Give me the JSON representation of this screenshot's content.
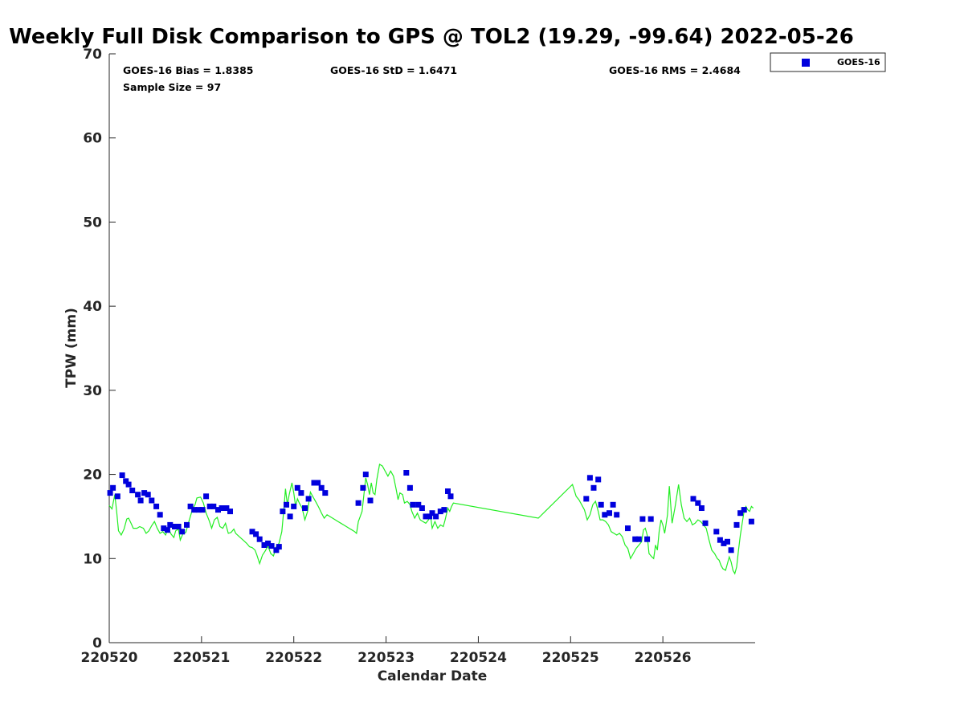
{
  "chart_data": {
    "type": "scatter",
    "title": "Weekly Full Disk Comparison to GPS @ TOL2 (19.29, -99.64) 2022-05-26",
    "xlabel": "Calendar Date",
    "ylabel": "TPW (mm)",
    "xlim": [
      0,
      7.0
    ],
    "ylim": [
      0,
      70
    ],
    "x_ticks": [
      {
        "value": 0,
        "label": "220520"
      },
      {
        "value": 1,
        "label": "220521"
      },
      {
        "value": 2,
        "label": "220522"
      },
      {
        "value": 3,
        "label": "220523"
      },
      {
        "value": 4,
        "label": "220524"
      },
      {
        "value": 5,
        "label": "220525"
      },
      {
        "value": 6,
        "label": "220526"
      }
    ],
    "y_ticks": [
      0,
      10,
      20,
      30,
      40,
      50,
      60,
      70
    ],
    "grid": false,
    "legend_position": "top-right",
    "stats": {
      "bias": "GOES-16 Bias = 1.8385",
      "std": "GOES-16 StD = 1.6471",
      "rms": "GOES-16 RMS = 2.4684",
      "sample": "Sample Size = 97"
    },
    "series": [
      {
        "name": "GOES-16",
        "kind": "scatter",
        "color": "#0000dd",
        "points": [
          [
            0.01,
            17.8
          ],
          [
            0.04,
            18.4
          ],
          [
            0.09,
            17.4
          ],
          [
            0.14,
            19.9
          ],
          [
            0.18,
            19.2
          ],
          [
            0.21,
            18.8
          ],
          [
            0.25,
            18.1
          ],
          [
            0.31,
            17.6
          ],
          [
            0.34,
            16.9
          ],
          [
            0.38,
            17.8
          ],
          [
            0.42,
            17.6
          ],
          [
            0.46,
            16.9
          ],
          [
            0.51,
            16.2
          ],
          [
            0.55,
            15.2
          ],
          [
            0.59,
            13.6
          ],
          [
            0.63,
            13.4
          ],
          [
            0.66,
            14.0
          ],
          [
            0.71,
            13.8
          ],
          [
            0.75,
            13.8
          ],
          [
            0.79,
            13.2
          ],
          [
            0.84,
            14.0
          ],
          [
            0.88,
            16.2
          ],
          [
            0.92,
            15.8
          ],
          [
            0.97,
            15.8
          ],
          [
            1.01,
            15.8
          ],
          [
            1.05,
            17.4
          ],
          [
            1.09,
            16.2
          ],
          [
            1.13,
            16.2
          ],
          [
            1.18,
            15.8
          ],
          [
            1.22,
            16.0
          ],
          [
            1.27,
            16.0
          ],
          [
            1.31,
            15.6
          ],
          [
            1.55,
            13.2
          ],
          [
            1.59,
            12.9
          ],
          [
            1.63,
            12.3
          ],
          [
            1.68,
            11.6
          ],
          [
            1.72,
            11.8
          ],
          [
            1.76,
            11.5
          ],
          [
            1.81,
            11.0
          ],
          [
            1.84,
            11.4
          ],
          [
            1.88,
            15.6
          ],
          [
            1.92,
            16.4
          ],
          [
            1.96,
            15.0
          ],
          [
            2.0,
            16.2
          ],
          [
            2.04,
            18.4
          ],
          [
            2.08,
            17.8
          ],
          [
            2.12,
            16.0
          ],
          [
            2.16,
            17.1
          ],
          [
            2.22,
            19.0
          ],
          [
            2.26,
            19.0
          ],
          [
            2.3,
            18.4
          ],
          [
            2.34,
            17.8
          ],
          [
            2.7,
            16.6
          ],
          [
            2.75,
            18.4
          ],
          [
            2.78,
            20.0
          ],
          [
            2.83,
            16.9
          ],
          [
            3.22,
            20.2
          ],
          [
            3.26,
            18.4
          ],
          [
            3.29,
            16.4
          ],
          [
            3.35,
            16.4
          ],
          [
            3.39,
            16.0
          ],
          [
            3.43,
            15.0
          ],
          [
            3.47,
            15.0
          ],
          [
            3.5,
            15.4
          ],
          [
            3.54,
            15.0
          ],
          [
            3.59,
            15.6
          ],
          [
            3.63,
            15.8
          ],
          [
            3.67,
            18.0
          ],
          [
            3.7,
            17.4
          ],
          [
            5.17,
            17.1
          ],
          [
            5.21,
            19.6
          ],
          [
            5.25,
            18.4
          ],
          [
            5.3,
            19.4
          ],
          [
            5.33,
            16.4
          ],
          [
            5.37,
            15.2
          ],
          [
            5.42,
            15.4
          ],
          [
            5.46,
            16.4
          ],
          [
            5.5,
            15.2
          ],
          [
            5.62,
            13.6
          ],
          [
            5.7,
            12.3
          ],
          [
            5.74,
            12.3
          ],
          [
            5.78,
            14.7
          ],
          [
            5.83,
            12.3
          ],
          [
            5.87,
            14.7
          ],
          [
            6.33,
            17.1
          ],
          [
            6.38,
            16.6
          ],
          [
            6.42,
            16.0
          ],
          [
            6.46,
            14.2
          ],
          [
            6.58,
            13.2
          ],
          [
            6.62,
            12.2
          ],
          [
            6.66,
            11.8
          ],
          [
            6.7,
            12.0
          ],
          [
            6.74,
            11.0
          ],
          [
            6.8,
            14.0
          ],
          [
            6.84,
            15.4
          ],
          [
            6.88,
            15.8
          ],
          [
            6.96,
            14.4
          ]
        ]
      },
      {
        "name": "",
        "kind": "line",
        "color": "#22ee22",
        "points": [
          [
            0.0,
            16.3
          ],
          [
            0.03,
            15.9
          ],
          [
            0.06,
            17.6
          ],
          [
            0.08,
            15.6
          ],
          [
            0.1,
            13.3
          ],
          [
            0.13,
            12.8
          ],
          [
            0.16,
            13.5
          ],
          [
            0.19,
            14.7
          ],
          [
            0.21,
            14.8
          ],
          [
            0.24,
            14.1
          ],
          [
            0.26,
            13.6
          ],
          [
            0.3,
            13.6
          ],
          [
            0.33,
            13.8
          ],
          [
            0.37,
            13.6
          ],
          [
            0.4,
            13.0
          ],
          [
            0.43,
            13.3
          ],
          [
            0.46,
            13.9
          ],
          [
            0.49,
            14.4
          ],
          [
            0.52,
            13.6
          ],
          [
            0.55,
            13.0
          ],
          [
            0.58,
            13.2
          ],
          [
            0.61,
            12.8
          ],
          [
            0.64,
            13.6
          ],
          [
            0.67,
            12.9
          ],
          [
            0.7,
            12.5
          ],
          [
            0.72,
            13.3
          ],
          [
            0.75,
            13.5
          ],
          [
            0.77,
            12.2
          ],
          [
            0.8,
            13.0
          ],
          [
            0.83,
            13.1
          ],
          [
            0.86,
            14.3
          ],
          [
            0.9,
            15.8
          ],
          [
            0.93,
            16.4
          ],
          [
            0.95,
            17.2
          ],
          [
            0.99,
            17.3
          ],
          [
            1.02,
            16.6
          ],
          [
            1.05,
            15.4
          ],
          [
            1.08,
            14.6
          ],
          [
            1.11,
            13.6
          ],
          [
            1.14,
            14.6
          ],
          [
            1.17,
            14.9
          ],
          [
            1.2,
            13.8
          ],
          [
            1.23,
            13.6
          ],
          [
            1.26,
            14.2
          ],
          [
            1.29,
            13.0
          ],
          [
            1.32,
            13.1
          ],
          [
            1.35,
            13.5
          ],
          [
            1.37,
            13.0
          ],
          [
            1.41,
            12.6
          ],
          [
            1.45,
            12.2
          ],
          [
            1.49,
            11.8
          ],
          [
            1.52,
            11.4
          ],
          [
            1.55,
            11.3
          ],
          [
            1.58,
            11.0
          ],
          [
            1.6,
            10.4
          ],
          [
            1.63,
            9.4
          ],
          [
            1.66,
            10.4
          ],
          [
            1.69,
            10.9
          ],
          [
            1.72,
            11.5
          ],
          [
            1.75,
            10.6
          ],
          [
            1.78,
            10.3
          ],
          [
            1.81,
            11.4
          ],
          [
            1.84,
            11.8
          ],
          [
            1.87,
            13.2
          ],
          [
            1.89,
            15.6
          ],
          [
            1.91,
            18.3
          ],
          [
            1.93,
            16.4
          ],
          [
            1.95,
            17.6
          ],
          [
            1.98,
            19.0
          ],
          [
            2.0,
            17.8
          ],
          [
            2.02,
            16.2
          ],
          [
            2.04,
            17.1
          ],
          [
            2.06,
            16.6
          ],
          [
            2.09,
            16.0
          ],
          [
            2.12,
            14.6
          ],
          [
            2.15,
            15.6
          ],
          [
            2.18,
            17.9
          ],
          [
            2.21,
            17.3
          ],
          [
            2.24,
            16.7
          ],
          [
            2.27,
            16.1
          ],
          [
            2.3,
            15.4
          ],
          [
            2.33,
            14.8
          ],
          [
            2.36,
            15.2
          ],
          [
            2.39,
            15.0
          ],
          [
            2.42,
            14.8
          ],
          [
            2.45,
            14.6
          ],
          [
            2.48,
            14.4
          ],
          [
            2.51,
            14.2
          ],
          [
            2.54,
            14.0
          ],
          [
            2.57,
            13.8
          ],
          [
            2.6,
            13.6
          ],
          [
            2.63,
            13.4
          ],
          [
            2.66,
            13.2
          ],
          [
            2.68,
            13.0
          ],
          [
            2.7,
            14.4
          ],
          [
            2.72,
            15.0
          ],
          [
            2.74,
            15.6
          ],
          [
            2.76,
            17.6
          ],
          [
            2.78,
            19.6
          ],
          [
            2.8,
            18.8
          ],
          [
            2.82,
            17.6
          ],
          [
            2.84,
            19.0
          ],
          [
            2.86,
            17.8
          ],
          [
            2.88,
            17.6
          ],
          [
            2.9,
            19.4
          ],
          [
            2.93,
            21.2
          ],
          [
            2.96,
            21.0
          ],
          [
            2.99,
            20.4
          ],
          [
            3.02,
            19.8
          ],
          [
            3.05,
            20.4
          ],
          [
            3.08,
            19.8
          ],
          [
            3.11,
            18.2
          ],
          [
            3.13,
            17.0
          ],
          [
            3.15,
            17.8
          ],
          [
            3.18,
            17.6
          ],
          [
            3.2,
            16.6
          ],
          [
            3.23,
            16.8
          ],
          [
            3.26,
            16.4
          ],
          [
            3.28,
            15.6
          ],
          [
            3.31,
            14.8
          ],
          [
            3.34,
            15.4
          ],
          [
            3.37,
            14.6
          ],
          [
            3.4,
            14.4
          ],
          [
            3.43,
            14.2
          ],
          [
            3.46,
            14.6
          ],
          [
            3.48,
            15.2
          ],
          [
            3.5,
            13.6
          ],
          [
            3.53,
            14.4
          ],
          [
            3.56,
            13.6
          ],
          [
            3.59,
            14.0
          ],
          [
            3.62,
            13.8
          ],
          [
            3.64,
            14.6
          ],
          [
            3.67,
            16.0
          ],
          [
            3.69,
            15.6
          ],
          [
            3.71,
            16.2
          ],
          [
            3.73,
            16.6
          ],
          [
            4.65,
            14.8
          ],
          [
            5.02,
            18.8
          ],
          [
            5.06,
            17.4
          ],
          [
            5.09,
            17.0
          ],
          [
            5.12,
            16.4
          ],
          [
            5.15,
            15.8
          ],
          [
            5.18,
            14.6
          ],
          [
            5.21,
            15.2
          ],
          [
            5.24,
            16.4
          ],
          [
            5.27,
            16.8
          ],
          [
            5.3,
            15.6
          ],
          [
            5.32,
            14.6
          ],
          [
            5.35,
            14.6
          ],
          [
            5.38,
            14.4
          ],
          [
            5.41,
            14.0
          ],
          [
            5.44,
            13.2
          ],
          [
            5.47,
            13.0
          ],
          [
            5.5,
            12.8
          ],
          [
            5.53,
            13.0
          ],
          [
            5.56,
            12.6
          ],
          [
            5.59,
            11.6
          ],
          [
            5.62,
            11.2
          ],
          [
            5.65,
            10.0
          ],
          [
            5.68,
            10.6
          ],
          [
            5.71,
            11.2
          ],
          [
            5.74,
            11.6
          ],
          [
            5.77,
            12.0
          ],
          [
            5.79,
            13.4
          ],
          [
            5.81,
            13.6
          ],
          [
            5.83,
            12.8
          ],
          [
            5.85,
            10.6
          ],
          [
            5.88,
            10.2
          ],
          [
            5.9,
            10.0
          ],
          [
            5.92,
            11.6
          ],
          [
            5.94,
            11.0
          ],
          [
            5.96,
            13.2
          ],
          [
            5.98,
            14.6
          ],
          [
            6.0,
            14.0
          ],
          [
            6.02,
            13.0
          ],
          [
            6.05,
            15.2
          ],
          [
            6.07,
            18.6
          ],
          [
            6.1,
            14.2
          ],
          [
            6.13,
            16.0
          ],
          [
            6.15,
            17.4
          ],
          [
            6.17,
            18.8
          ],
          [
            6.2,
            16.4
          ],
          [
            6.23,
            14.8
          ],
          [
            6.26,
            14.4
          ],
          [
            6.29,
            14.8
          ],
          [
            6.32,
            14.0
          ],
          [
            6.35,
            14.2
          ],
          [
            6.38,
            14.6
          ],
          [
            6.41,
            14.4
          ],
          [
            6.44,
            14.0
          ],
          [
            6.47,
            13.6
          ],
          [
            6.5,
            12.2
          ],
          [
            6.53,
            11.0
          ],
          [
            6.56,
            10.6
          ],
          [
            6.59,
            10.0
          ],
          [
            6.61,
            9.8
          ],
          [
            6.63,
            9.2
          ],
          [
            6.65,
            8.8
          ],
          [
            6.68,
            8.6
          ],
          [
            6.7,
            9.4
          ],
          [
            6.72,
            10.2
          ],
          [
            6.74,
            9.6
          ],
          [
            6.76,
            8.6
          ],
          [
            6.78,
            8.2
          ],
          [
            6.8,
            9.0
          ],
          [
            6.82,
            11.0
          ],
          [
            6.84,
            12.8
          ],
          [
            6.86,
            14.2
          ],
          [
            6.88,
            15.6
          ],
          [
            6.9,
            16.2
          ],
          [
            6.92,
            15.8
          ],
          [
            6.94,
            15.6
          ],
          [
            6.96,
            16.2
          ],
          [
            6.98,
            16.0
          ]
        ]
      }
    ]
  }
}
